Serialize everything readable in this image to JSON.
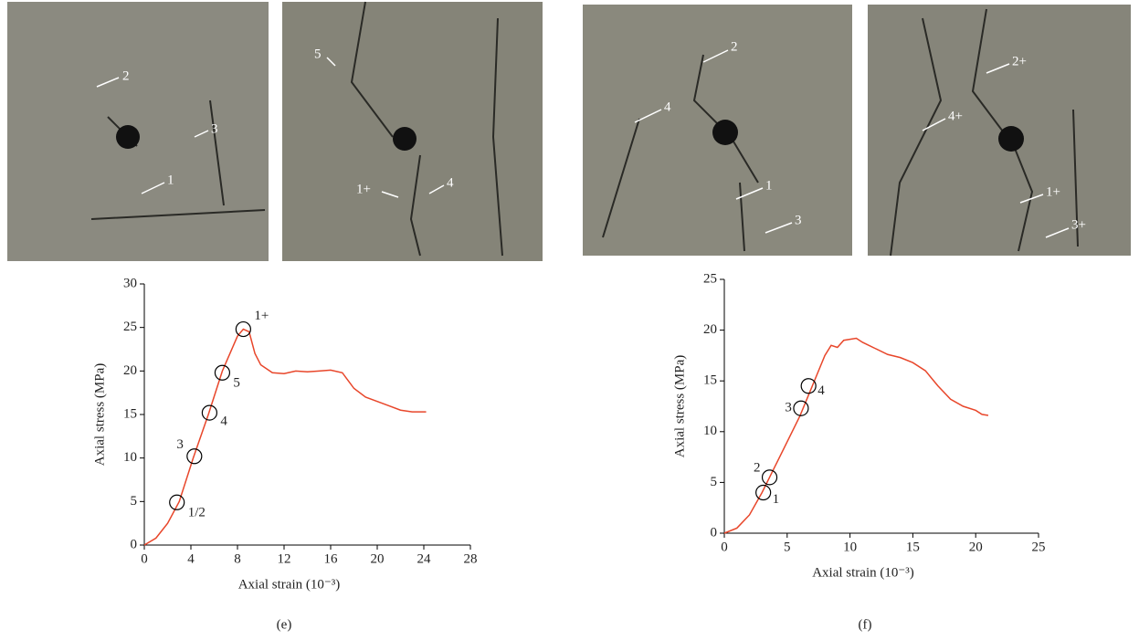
{
  "photos": [
    {
      "labels": [
        "2",
        "3",
        "1"
      ]
    },
    {
      "labels": [
        "5",
        "1+",
        "4"
      ]
    },
    {
      "labels": [
        "2",
        "4",
        "1",
        "3"
      ]
    },
    {
      "labels": [
        "2+",
        "4+",
        "1+",
        "3+"
      ]
    }
  ],
  "chart_data": [
    {
      "type": "line",
      "caption": "(e)",
      "xlabel": "Axial strain (10⁻³)",
      "ylabel": "Axial stress (MPa)",
      "xlim": [
        0,
        28
      ],
      "xticks": [
        0,
        4,
        8,
        12,
        16,
        20,
        24,
        28
      ],
      "ylim": [
        0,
        30
      ],
      "yticks": [
        0,
        5,
        10,
        15,
        20,
        25,
        30
      ],
      "series": [
        {
          "color": "#e8462a",
          "x": [
            0,
            1,
            2,
            3,
            4.2,
            5.5,
            6.7,
            8,
            8.5,
            9,
            9.5,
            10,
            11,
            12,
            13,
            14,
            15,
            16,
            17,
            18,
            19,
            20,
            21,
            22,
            23,
            24.2
          ],
          "values": [
            0,
            0.8,
            2.5,
            5,
            10,
            15,
            20,
            24,
            24.8,
            24.5,
            22,
            20.7,
            19.8,
            19.7,
            20,
            19.9,
            20,
            20.1,
            19.8,
            18,
            17,
            16.5,
            16,
            15.5,
            15.3,
            15.3
          ]
        }
      ],
      "markers": {
        "x": [
          2.8,
          4.3,
          5.6,
          6.7,
          8.5
        ],
        "values": [
          4.9,
          10.2,
          15.2,
          19.8,
          24.8
        ],
        "labels": [
          "1/2",
          "3",
          "4",
          "5",
          "1+"
        ]
      }
    },
    {
      "type": "line",
      "caption": "(f)",
      "xlabel": "Axial strain (10⁻³)",
      "ylabel": "Axial stress (MPa)",
      "xlim": [
        0,
        25
      ],
      "xticks": [
        0,
        5,
        10,
        15,
        20,
        25
      ],
      "ylim": [
        0,
        25
      ],
      "yticks": [
        0,
        5,
        10,
        15,
        20,
        25
      ],
      "series": [
        {
          "color": "#e8462a",
          "x": [
            0,
            1,
            2,
            3,
            4,
            5,
            6,
            7,
            8,
            8.5,
            9,
            9.5,
            10,
            10.5,
            11,
            12,
            13,
            14,
            15,
            16,
            17,
            18,
            19,
            20,
            20.5,
            21
          ],
          "values": [
            0,
            0.5,
            1.8,
            4,
            6.5,
            9,
            11.5,
            14.5,
            17.5,
            18.5,
            18.3,
            19,
            19.1,
            19.2,
            18.8,
            18.2,
            17.6,
            17.3,
            16.8,
            16,
            14.5,
            13.2,
            12.5,
            12.1,
            11.7,
            11.6
          ]
        }
      ],
      "markers": {
        "x": [
          3.1,
          3.6,
          6.1,
          6.7
        ],
        "values": [
          4,
          5.5,
          12.3,
          14.5
        ],
        "labels": [
          "1",
          "2",
          "3",
          "4"
        ]
      }
    }
  ]
}
